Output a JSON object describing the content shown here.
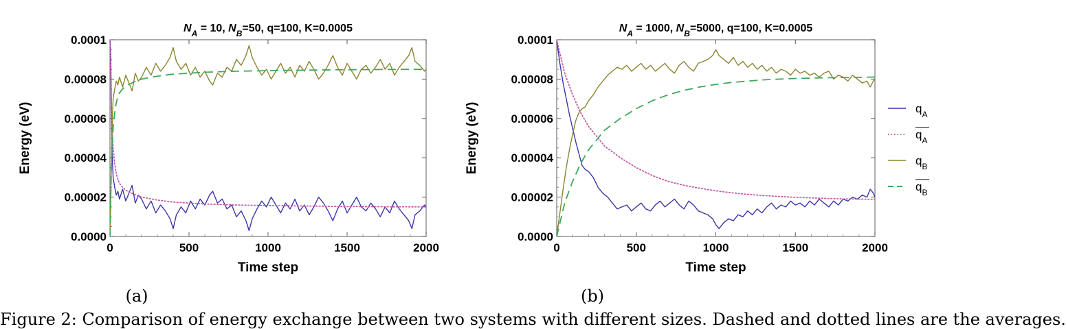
{
  "captions": {
    "panel_a": "(a)",
    "panel_b": "(b)",
    "figure_text": "Figure 2: Comparison of energy exchange between two systems with different sizes. Dashed and dotted lines are the averages."
  },
  "colors": {
    "qA": "#3b36a6",
    "qA_avg": "#c45aa8",
    "qB": "#8a8530",
    "qB_avg": "#3fa85a"
  },
  "legend": {
    "items": [
      {
        "label": "q",
        "sub": "A",
        "overline": false,
        "style": "solid",
        "color": "#3b36a6"
      },
      {
        "label": "q",
        "sub": "A",
        "overline": true,
        "style": "dotted",
        "color": "#c45aa8"
      },
      {
        "label": "q",
        "sub": "B",
        "overline": false,
        "style": "solid",
        "color": "#8a8530"
      },
      {
        "label": "q",
        "sub": "B",
        "overline": true,
        "style": "dashed",
        "color": "#3fa85a"
      }
    ]
  },
  "chart_data": [
    {
      "type": "line",
      "title_parts": [
        {
          "t": "N",
          "italic": true
        },
        {
          "t": "A",
          "sub": true,
          "italic": true
        },
        {
          "t": " = 10, "
        },
        {
          "t": "N",
          "italic": true
        },
        {
          "t": "B",
          "sub": true,
          "italic": true
        },
        {
          "t": "=50, q=100, K=0.0005"
        }
      ],
      "xlabel": "Time step",
      "ylabel": "Energy (eV)",
      "xlim": [
        0,
        2000
      ],
      "ylim": [
        0,
        0.0001
      ],
      "xticks": [
        0,
        500,
        1000,
        1500,
        2000
      ],
      "xtick_labels": [
        "0",
        "500",
        "1000",
        "1500",
        "2000"
      ],
      "yticks": [
        0,
        2e-05,
        4e-05,
        6e-05,
        8e-05,
        0.0001
      ],
      "ytick_labels": [
        "0.0000",
        "0.00002",
        "0.00004",
        "0.00006",
        "0.00008",
        "0.0001"
      ],
      "series": [
        {
          "name": "qA",
          "style": "solid",
          "x": [
            0,
            5,
            10,
            15,
            20,
            30,
            40,
            50,
            60,
            80,
            100,
            120,
            140,
            160,
            180,
            200,
            230,
            260,
            290,
            320,
            350,
            380,
            400,
            420,
            450,
            480,
            510,
            540,
            570,
            600,
            630,
            650,
            680,
            710,
            740,
            770,
            800,
            830,
            860,
            880,
            900,
            930,
            960,
            990,
            1020,
            1050,
            1080,
            1110,
            1140,
            1170,
            1200,
            1230,
            1260,
            1290,
            1320,
            1350,
            1380,
            1410,
            1440,
            1470,
            1500,
            1530,
            1560,
            1590,
            1620,
            1650,
            1680,
            1710,
            1740,
            1770,
            1800,
            1830,
            1860,
            1890,
            1910,
            1930,
            1960,
            1990,
            2000
          ],
          "y": [
            0.0001,
            9e-05,
            6e-05,
            4e-05,
            3e-05,
            2.5e-05,
            2.1e-05,
            2.3e-05,
            1.9e-05,
            2.4e-05,
            1.8e-05,
            2.2e-05,
            2.6e-05,
            1.7e-05,
            2.1e-05,
            1.9e-05,
            1.4e-05,
            1.8e-05,
            1.2e-05,
            1.6e-05,
            1.3e-05,
            9e-06,
            4e-06,
            1.1e-05,
            1.5e-05,
            1.2e-05,
            1.8e-05,
            1.4e-05,
            1.9e-05,
            1.6e-05,
            2.1e-05,
            2.3e-05,
            1.7e-05,
            1.9e-05,
            1.4e-05,
            1.6e-05,
            1e-05,
            1.3e-05,
            8e-06,
            3e-06,
            9e-06,
            1.4e-05,
            1.8e-05,
            1.5e-05,
            2e-05,
            1.6e-05,
            1.2e-05,
            1.7e-05,
            1.4e-05,
            1.9e-05,
            1.3e-05,
            1.6e-05,
            1.1e-05,
            1.5e-05,
            2e-05,
            1.7e-05,
            1.3e-05,
            8e-06,
            1.4e-05,
            1.8e-05,
            1.2e-05,
            1.6e-05,
            2e-05,
            1.5e-05,
            1.3e-05,
            1.7e-05,
            1.4e-05,
            1e-05,
            1.5e-05,
            1.2e-05,
            1.8e-05,
            1.4e-05,
            1.1e-05,
            8e-06,
            4e-06,
            1.1e-05,
            1.3e-05,
            1.6e-05,
            1.5e-05
          ]
        },
        {
          "name": "qA_avg",
          "style": "dotted",
          "x": [
            0,
            10,
            20,
            30,
            40,
            50,
            60,
            80,
            100,
            150,
            200,
            300,
            400,
            500,
            600,
            800,
            1000,
            1200,
            1400,
            1600,
            1800,
            2000
          ],
          "y": [
            0.0001,
            6e-05,
            4.5e-05,
            3.7e-05,
            3.2e-05,
            2.9e-05,
            2.7e-05,
            2.5e-05,
            2.35e-05,
            2.15e-05,
            2e-05,
            1.85e-05,
            1.75e-05,
            1.7e-05,
            1.65e-05,
            1.6e-05,
            1.57e-05,
            1.55e-05,
            1.53e-05,
            1.52e-05,
            1.51e-05,
            1.5e-05
          ]
        },
        {
          "name": "qB",
          "style": "solid",
          "x": [
            0,
            5,
            10,
            15,
            20,
            30,
            40,
            50,
            60,
            80,
            100,
            120,
            140,
            160,
            180,
            200,
            230,
            260,
            290,
            320,
            350,
            380,
            400,
            420,
            450,
            480,
            510,
            540,
            570,
            600,
            630,
            650,
            680,
            710,
            740,
            770,
            800,
            830,
            860,
            880,
            900,
            930,
            960,
            990,
            1020,
            1050,
            1080,
            1110,
            1140,
            1170,
            1200,
            1230,
            1260,
            1290,
            1320,
            1350,
            1380,
            1410,
            1440,
            1470,
            1500,
            1530,
            1560,
            1590,
            1620,
            1650,
            1680,
            1710,
            1740,
            1770,
            1800,
            1830,
            1860,
            1890,
            1910,
            1930,
            1960,
            1990,
            2000
          ],
          "y": [
            0.0,
            2e-05,
            4e-05,
            6e-05,
            7e-05,
            7.5e-05,
            7.9e-05,
            7.7e-05,
            8.1e-05,
            7.6e-05,
            8.2e-05,
            7.8e-05,
            7.4e-05,
            8.3e-05,
            7.9e-05,
            8.1e-05,
            8.6e-05,
            8.2e-05,
            8.8e-05,
            8.4e-05,
            8.7e-05,
            9.1e-05,
            9.6e-05,
            8.9e-05,
            8.5e-05,
            8.8e-05,
            8.2e-05,
            8.6e-05,
            8.1e-05,
            8.4e-05,
            7.9e-05,
            7.7e-05,
            8.3e-05,
            8.1e-05,
            8.6e-05,
            8.4e-05,
            9e-05,
            8.7e-05,
            9.2e-05,
            9.7e-05,
            9.1e-05,
            8.6e-05,
            8.2e-05,
            8.5e-05,
            8e-05,
            8.4e-05,
            8.8e-05,
            8.3e-05,
            8.6e-05,
            8.1e-05,
            8.7e-05,
            8.4e-05,
            8.9e-05,
            8.5e-05,
            8e-05,
            8.3e-05,
            8.7e-05,
            9.2e-05,
            8.6e-05,
            8.2e-05,
            8.8e-05,
            8.4e-05,
            8e-05,
            8.5e-05,
            8.7e-05,
            8.3e-05,
            8.6e-05,
            9e-05,
            8.5e-05,
            8.8e-05,
            8.2e-05,
            8.6e-05,
            8.9e-05,
            9.2e-05,
            9.6e-05,
            8.9e-05,
            8.7e-05,
            8.4e-05,
            8.5e-05
          ]
        },
        {
          "name": "qB_avg",
          "style": "dashed",
          "x": [
            0,
            10,
            20,
            30,
            40,
            50,
            60,
            80,
            100,
            150,
            200,
            300,
            400,
            500,
            600,
            800,
            1000,
            1200,
            1400,
            1600,
            1800,
            2000
          ],
          "y": [
            0.0,
            4e-05,
            5.5e-05,
            6.3e-05,
            6.8e-05,
            7.1e-05,
            7.3e-05,
            7.5e-05,
            7.65e-05,
            7.85e-05,
            8e-05,
            8.15e-05,
            8.25e-05,
            8.3e-05,
            8.35e-05,
            8.4e-05,
            8.43e-05,
            8.45e-05,
            8.47e-05,
            8.48e-05,
            8.49e-05,
            8.5e-05
          ]
        }
      ]
    },
    {
      "type": "line",
      "title_parts": [
        {
          "t": "N",
          "italic": true
        },
        {
          "t": "A",
          "sub": true,
          "italic": true
        },
        {
          "t": " = 1000, "
        },
        {
          "t": "N",
          "italic": true
        },
        {
          "t": "B",
          "sub": true,
          "italic": true
        },
        {
          "t": "=5000, q=100, K=0.0005"
        }
      ],
      "xlabel": "Time step",
      "ylabel": "Energy (eV)",
      "xlim": [
        0,
        2000
      ],
      "ylim": [
        0,
        0.0001
      ],
      "xticks": [
        0,
        500,
        1000,
        1500,
        2000
      ],
      "xtick_labels": [
        "0",
        "500",
        "1000",
        "1500",
        "2000"
      ],
      "yticks": [
        0,
        2e-05,
        4e-05,
        6e-05,
        8e-05,
        0.0001
      ],
      "ytick_labels": [
        "0.0000",
        "0.00002",
        "0.00004",
        "0.00006",
        "0.00008",
        "0.0001"
      ],
      "series": [
        {
          "name": "qA",
          "style": "solid",
          "x": [
            0,
            20,
            40,
            60,
            80,
            100,
            120,
            140,
            160,
            180,
            200,
            230,
            260,
            290,
            320,
            350,
            380,
            410,
            440,
            470,
            500,
            530,
            560,
            590,
            620,
            650,
            680,
            710,
            740,
            770,
            800,
            830,
            860,
            890,
            920,
            950,
            980,
            1000,
            1020,
            1050,
            1080,
            1110,
            1140,
            1170,
            1200,
            1230,
            1260,
            1290,
            1320,
            1350,
            1380,
            1410,
            1440,
            1470,
            1500,
            1530,
            1560,
            1590,
            1620,
            1650,
            1680,
            1710,
            1740,
            1770,
            1800,
            1830,
            1860,
            1890,
            1920,
            1950,
            1970,
            1990,
            2000
          ],
          "y": [
            0.0001,
            8.8e-05,
            7.8e-05,
            7e-05,
            6.2e-05,
            5.5e-05,
            4.8e-05,
            4.2e-05,
            3.6e-05,
            3.4e-05,
            3.3e-05,
            3e-05,
            2.5e-05,
            2.2e-05,
            2e-05,
            1.7e-05,
            1.4e-05,
            1.5e-05,
            1.6e-05,
            1.3e-05,
            1.5e-05,
            1.7e-05,
            1.4e-05,
            1.3e-05,
            1.6e-05,
            1.8e-05,
            1.5e-05,
            1.7e-05,
            1.9e-05,
            1.6e-05,
            1.4e-05,
            1.8e-05,
            1.6e-05,
            1.3e-05,
            1.2e-05,
            1.1e-05,
            9e-06,
            6e-06,
            4e-06,
            7e-06,
            9e-06,
            8e-06,
            1.1e-05,
            1e-05,
            1.3e-05,
            1.1e-05,
            1.4e-05,
            1.2e-05,
            1.5e-05,
            1.7e-05,
            1.4e-05,
            1.6e-05,
            1.5e-05,
            1.8e-05,
            1.6e-05,
            1.7e-05,
            1.5e-05,
            1.8e-05,
            1.6e-05,
            1.9e-05,
            1.7e-05,
            1.5e-05,
            1.8e-05,
            1.6e-05,
            1.9e-05,
            1.8e-05,
            2e-05,
            1.9e-05,
            2.1e-05,
            2e-05,
            2.4e-05,
            2.2e-05,
            2e-05
          ]
        },
        {
          "name": "qA_avg",
          "style": "dotted",
          "x": [
            0,
            50,
            100,
            150,
            200,
            300,
            400,
            500,
            600,
            700,
            800,
            900,
            1000,
            1100,
            1200,
            1300,
            1400,
            1500,
            1600,
            1700,
            1800,
            1900,
            2000
          ],
          "y": [
            0.0001,
            8.3e-05,
            7.2e-05,
            6.3e-05,
            5.6e-05,
            4.6e-05,
            4e-05,
            3.5e-05,
            3.1e-05,
            2.8e-05,
            2.6e-05,
            2.45e-05,
            2.32e-05,
            2.22e-05,
            2.14e-05,
            2.08e-05,
            2.03e-05,
            1.99e-05,
            1.96e-05,
            1.93e-05,
            1.91e-05,
            1.9e-05,
            1.89e-05
          ]
        },
        {
          "name": "qB",
          "style": "solid",
          "x": [
            0,
            20,
            40,
            60,
            80,
            100,
            120,
            140,
            160,
            180,
            200,
            230,
            260,
            290,
            320,
            350,
            380,
            410,
            440,
            470,
            500,
            530,
            560,
            590,
            620,
            650,
            680,
            710,
            740,
            770,
            800,
            830,
            860,
            890,
            920,
            950,
            980,
            1000,
            1020,
            1050,
            1080,
            1110,
            1140,
            1170,
            1200,
            1230,
            1260,
            1290,
            1320,
            1350,
            1380,
            1410,
            1440,
            1470,
            1500,
            1530,
            1560,
            1590,
            1620,
            1650,
            1680,
            1710,
            1740,
            1770,
            1800,
            1830,
            1860,
            1890,
            1920,
            1950,
            1970,
            1990,
            2000
          ],
          "y": [
            0.0,
            1.2e-05,
            2.4e-05,
            3.5e-05,
            4.4e-05,
            5.2e-05,
            5.9e-05,
            6.3e-05,
            6.5e-05,
            6.6e-05,
            6.9e-05,
            7.2e-05,
            7.6e-05,
            7.9e-05,
            8.2e-05,
            8.4e-05,
            8.6e-05,
            8.5e-05,
            8.7e-05,
            8.4e-05,
            8.6e-05,
            8.8e-05,
            8.5e-05,
            8.7e-05,
            8.4e-05,
            8.6e-05,
            8.8e-05,
            8.5e-05,
            8.3e-05,
            8.7e-05,
            8.9e-05,
            8.6e-05,
            8.4e-05,
            8.8e-05,
            8.9e-05,
            9e-05,
            9.2e-05,
            9.5e-05,
            9.2e-05,
            9e-05,
            8.8e-05,
            9.1e-05,
            8.7e-05,
            8.9e-05,
            8.6e-05,
            8.8e-05,
            8.5e-05,
            8.7e-05,
            8.4e-05,
            8.6e-05,
            8.3e-05,
            8.5e-05,
            8.4e-05,
            8.2e-05,
            8.5e-05,
            8.3e-05,
            8.4e-05,
            8.2e-05,
            8.3e-05,
            8.1e-05,
            8.3e-05,
            8.4e-05,
            8e-05,
            8.2e-05,
            8.1e-05,
            7.9e-05,
            8.2e-05,
            8e-05,
            7.8e-05,
            7.9e-05,
            7.6e-05,
            7.9e-05,
            8e-05
          ]
        },
        {
          "name": "qB_avg",
          "style": "dashed",
          "x": [
            0,
            50,
            100,
            150,
            200,
            300,
            400,
            500,
            600,
            700,
            800,
            900,
            1000,
            1100,
            1200,
            1300,
            1400,
            1500,
            1600,
            1700,
            1800,
            1900,
            2000
          ],
          "y": [
            0.0,
            1.7e-05,
            2.8e-05,
            3.7e-05,
            4.4e-05,
            5.4e-05,
            6e-05,
            6.5e-05,
            6.9e-05,
            7.2e-05,
            7.43e-05,
            7.6e-05,
            7.73e-05,
            7.83e-05,
            7.9e-05,
            7.96e-05,
            8e-05,
            8.03e-05,
            8.05e-05,
            8.07e-05,
            8.08e-05,
            8.09e-05,
            8.1e-05
          ]
        }
      ]
    }
  ]
}
